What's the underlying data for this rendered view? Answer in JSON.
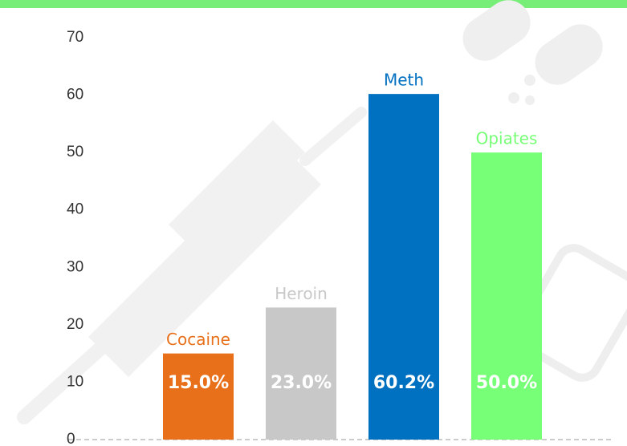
{
  "chart_data": {
    "type": "bar",
    "categories": [
      "Cocaine",
      "Heroin",
      "Meth",
      "Opiates"
    ],
    "values": [
      15,
      23,
      60.2,
      50
    ],
    "value_labels": [
      "15.0%",
      "23.0%",
      "60.2%",
      "50.0%"
    ],
    "colors": [
      "#e8701a",
      "#c8c8c8",
      "#0070c0",
      "#77ff77"
    ],
    "ylim": [
      0,
      70
    ],
    "yticks": [
      0,
      10,
      20,
      30,
      40,
      50,
      60,
      70
    ],
    "grid": false
  }
}
